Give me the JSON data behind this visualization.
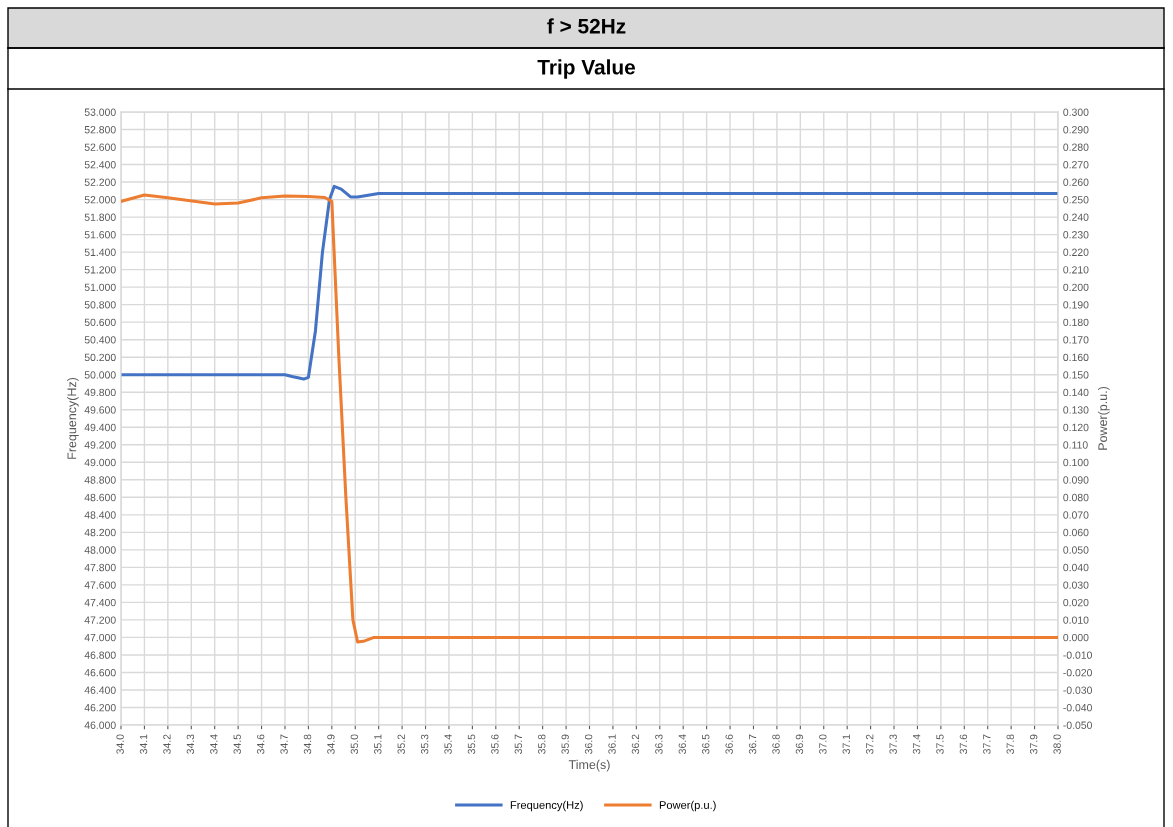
{
  "chart_data": {
    "type": "line",
    "title": "f > 52Hz",
    "subtitle": "Trip Value",
    "xlabel": "Time(s)",
    "ylabel": "Frequency(Hz)",
    "y2label": "Power(p.u.)",
    "xlim": [
      34.0,
      38.0
    ],
    "xticks": [
      {
        "value": 34.0,
        "label": "34.0"
      },
      {
        "value": 34.1,
        "label": "34.1"
      },
      {
        "value": 34.2,
        "label": "34.2"
      },
      {
        "value": 34.3,
        "label": "34.3"
      },
      {
        "value": 34.4,
        "label": "34.4"
      },
      {
        "value": 34.5,
        "label": "34.5"
      },
      {
        "value": 34.6,
        "label": "34.6"
      },
      {
        "value": 34.7,
        "label": "34.7"
      },
      {
        "value": 34.8,
        "label": "34.8"
      },
      {
        "value": 34.9,
        "label": "34.9"
      },
      {
        "value": 35.0,
        "label": "35.0"
      },
      {
        "value": 35.1,
        "label": "35.1"
      },
      {
        "value": 35.2,
        "label": "35.2"
      },
      {
        "value": 35.3,
        "label": "35.3"
      },
      {
        "value": 35.4,
        "label": "35.4"
      },
      {
        "value": 35.5,
        "label": "35.5"
      },
      {
        "value": 35.6,
        "label": "35.6"
      },
      {
        "value": 35.7,
        "label": "35.7"
      },
      {
        "value": 35.8,
        "label": "35.8"
      },
      {
        "value": 35.9,
        "label": "35.9"
      },
      {
        "value": 36.0,
        "label": "36.0"
      },
      {
        "value": 36.1,
        "label": "36.1"
      },
      {
        "value": 36.2,
        "label": "36.2"
      },
      {
        "value": 36.3,
        "label": "36.3"
      },
      {
        "value": 36.4,
        "label": "36.4"
      },
      {
        "value": 36.5,
        "label": "36.5"
      },
      {
        "value": 36.6,
        "label": "36.6"
      },
      {
        "value": 36.7,
        "label": "36.7"
      },
      {
        "value": 36.8,
        "label": "36.8"
      },
      {
        "value": 36.9,
        "label": "36.9"
      },
      {
        "value": 37.0,
        "label": "37.0"
      },
      {
        "value": 37.1,
        "label": "37.1"
      },
      {
        "value": 37.2,
        "label": "37.2"
      },
      {
        "value": 37.3,
        "label": "37.3"
      },
      {
        "value": 37.4,
        "label": "37.4"
      },
      {
        "value": 37.5,
        "label": "37.5"
      },
      {
        "value": 37.6,
        "label": "37.6"
      },
      {
        "value": 37.7,
        "label": "37.7"
      },
      {
        "value": 37.8,
        "label": "37.8"
      },
      {
        "value": 37.9,
        "label": "37.9"
      },
      {
        "value": 38.0,
        "label": "38.0"
      }
    ],
    "ylim": [
      46.0,
      53.0
    ],
    "yticks": [
      {
        "value": 46.0,
        "label": "46.000"
      },
      {
        "value": 46.2,
        "label": "46.200"
      },
      {
        "value": 46.4,
        "label": "46.400"
      },
      {
        "value": 46.6,
        "label": "46.600"
      },
      {
        "value": 46.8,
        "label": "46.800"
      },
      {
        "value": 47.0,
        "label": "47.000"
      },
      {
        "value": 47.2,
        "label": "47.200"
      },
      {
        "value": 47.4,
        "label": "47.400"
      },
      {
        "value": 47.6,
        "label": "47.600"
      },
      {
        "value": 47.8,
        "label": "47.800"
      },
      {
        "value": 48.0,
        "label": "48.000"
      },
      {
        "value": 48.2,
        "label": "48.200"
      },
      {
        "value": 48.4,
        "label": "48.400"
      },
      {
        "value": 48.6,
        "label": "48.600"
      },
      {
        "value": 48.8,
        "label": "48.800"
      },
      {
        "value": 49.0,
        "label": "49.000"
      },
      {
        "value": 49.2,
        "label": "49.200"
      },
      {
        "value": 49.4,
        "label": "49.400"
      },
      {
        "value": 49.6,
        "label": "49.600"
      },
      {
        "value": 49.8,
        "label": "49.800"
      },
      {
        "value": 50.0,
        "label": "50.000"
      },
      {
        "value": 50.2,
        "label": "50.200"
      },
      {
        "value": 50.4,
        "label": "50.400"
      },
      {
        "value": 50.6,
        "label": "50.600"
      },
      {
        "value": 50.8,
        "label": "50.800"
      },
      {
        "value": 51.0,
        "label": "51.000"
      },
      {
        "value": 51.2,
        "label": "51.200"
      },
      {
        "value": 51.4,
        "label": "51.400"
      },
      {
        "value": 51.6,
        "label": "51.600"
      },
      {
        "value": 51.8,
        "label": "51.800"
      },
      {
        "value": 52.0,
        "label": "52.000"
      },
      {
        "value": 52.2,
        "label": "52.200"
      },
      {
        "value": 52.4,
        "label": "52.400"
      },
      {
        "value": 52.6,
        "label": "52.600"
      },
      {
        "value": 52.8,
        "label": "52.800"
      },
      {
        "value": 53.0,
        "label": "53.000"
      }
    ],
    "y2lim": [
      -0.05,
      0.3
    ],
    "y2ticks": [
      {
        "value": -0.05,
        "label": "-0.050"
      },
      {
        "value": -0.04,
        "label": "-0.040"
      },
      {
        "value": -0.03,
        "label": "-0.030"
      },
      {
        "value": -0.02,
        "label": "-0.020"
      },
      {
        "value": -0.01,
        "label": "-0.010"
      },
      {
        "value": 0.0,
        "label": "0.000"
      },
      {
        "value": 0.01,
        "label": "0.010"
      },
      {
        "value": 0.02,
        "label": "0.020"
      },
      {
        "value": 0.03,
        "label": "0.030"
      },
      {
        "value": 0.04,
        "label": "0.040"
      },
      {
        "value": 0.05,
        "label": "0.050"
      },
      {
        "value": 0.06,
        "label": "0.060"
      },
      {
        "value": 0.07,
        "label": "0.070"
      },
      {
        "value": 0.08,
        "label": "0.080"
      },
      {
        "value": 0.09,
        "label": "0.090"
      },
      {
        "value": 0.1,
        "label": "0.100"
      },
      {
        "value": 0.11,
        "label": "0.110"
      },
      {
        "value": 0.12,
        "label": "0.120"
      },
      {
        "value": 0.13,
        "label": "0.130"
      },
      {
        "value": 0.14,
        "label": "0.140"
      },
      {
        "value": 0.15,
        "label": "0.150"
      },
      {
        "value": 0.16,
        "label": "0.160"
      },
      {
        "value": 0.17,
        "label": "0.170"
      },
      {
        "value": 0.18,
        "label": "0.180"
      },
      {
        "value": 0.19,
        "label": "0.190"
      },
      {
        "value": 0.2,
        "label": "0.200"
      },
      {
        "value": 0.21,
        "label": "0.210"
      },
      {
        "value": 0.22,
        "label": "0.220"
      },
      {
        "value": 0.23,
        "label": "0.230"
      },
      {
        "value": 0.24,
        "label": "0.240"
      },
      {
        "value": 0.25,
        "label": "0.250"
      },
      {
        "value": 0.26,
        "label": "0.260"
      },
      {
        "value": 0.27,
        "label": "0.270"
      },
      {
        "value": 0.28,
        "label": "0.280"
      },
      {
        "value": 0.29,
        "label": "0.290"
      },
      {
        "value": 0.3,
        "label": "0.300"
      }
    ],
    "grid": true,
    "legend": "bottom",
    "marker": "none",
    "line_style": "solid",
    "series": [
      {
        "name": "Frequency(Hz)",
        "color": "#4472c4",
        "x": [
          34.0,
          34.3,
          34.5,
          34.7,
          34.73,
          34.78,
          34.8,
          34.83,
          34.86,
          34.89,
          34.91,
          34.94,
          34.98,
          35.01,
          35.1,
          35.5,
          36.0,
          37.0,
          38.0
        ],
        "values": [
          50.0,
          50.0,
          50.0,
          50.0,
          49.98,
          49.95,
          49.97,
          50.5,
          51.4,
          52.0,
          52.15,
          52.12,
          52.03,
          52.03,
          52.07,
          52.07,
          52.07,
          52.07,
          52.07
        ]
      },
      {
        "name": "Power(p.u.)",
        "color": "#ed7d31",
        "axis": "y2",
        "x": [
          34.0,
          34.1,
          34.2,
          34.4,
          34.5,
          34.6,
          34.7,
          34.8,
          34.87,
          34.9,
          34.93,
          34.96,
          34.99,
          35.01,
          35.04,
          35.08,
          38.0
        ],
        "values": [
          0.249,
          0.2526,
          0.251,
          0.2475,
          0.248,
          0.251,
          0.252,
          0.2518,
          0.2512,
          0.249,
          0.16,
          0.08,
          0.01,
          -0.0026,
          -0.002,
          0.0,
          0.0
        ]
      }
    ]
  }
}
